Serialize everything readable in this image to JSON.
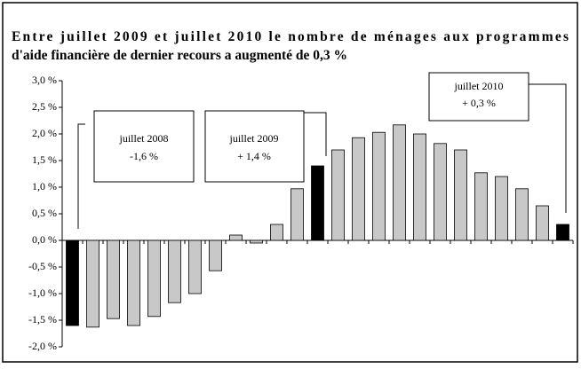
{
  "chart_data": {
    "type": "bar",
    "title": [
      "Entre juillet 2009 et juillet 2010 le nombre de ménages aux programmes",
      "d'aide financière de dernier recours a augmenté de 0,3 %"
    ],
    "categories": [
      null,
      null,
      null,
      null,
      null,
      null,
      null,
      null,
      null,
      null,
      null,
      null,
      null,
      null,
      null,
      null,
      null,
      null,
      null,
      null,
      null,
      null,
      null,
      null,
      null
    ],
    "values": [
      -1.6,
      -1.63,
      -1.47,
      -1.6,
      -1.43,
      -1.17,
      -1.0,
      -0.57,
      0.1,
      -0.05,
      0.3,
      0.97,
      1.4,
      1.7,
      1.93,
      2.03,
      2.17,
      2.0,
      1.82,
      1.7,
      1.27,
      1.2,
      0.97,
      0.65,
      0.3
    ],
    "colors": [
      "#000000",
      "#c8c8c8",
      "#c8c8c8",
      "#c8c8c8",
      "#c8c8c8",
      "#c8c8c8",
      "#c8c8c8",
      "#c8c8c8",
      "#c8c8c8",
      "#c8c8c8",
      "#c8c8c8",
      "#c8c8c8",
      "#000000",
      "#c8c8c8",
      "#c8c8c8",
      "#c8c8c8",
      "#c8c8c8",
      "#c8c8c8",
      "#c8c8c8",
      "#c8c8c8",
      "#c8c8c8",
      "#c8c8c8",
      "#c8c8c8",
      "#c8c8c8",
      "#000000"
    ],
    "ylim": [
      -2.0,
      3.0
    ],
    "yticks": [
      {
        "value": -2.0,
        "label": "-2,0 %"
      },
      {
        "value": -1.5,
        "label": "-1,5 %"
      },
      {
        "value": -1.0,
        "label": "-1,0 %"
      },
      {
        "value": -0.5,
        "label": "-0,5 %"
      },
      {
        "value": 0.0,
        "label": "0,0 %"
      },
      {
        "value": 0.5,
        "label": "0,5 %"
      },
      {
        "value": 1.0,
        "label": "1,0 %"
      },
      {
        "value": 1.5,
        "label": "1,5 %"
      },
      {
        "value": 2.0,
        "label": "2,0 %"
      },
      {
        "value": 2.5,
        "label": "2,5 %"
      },
      {
        "value": 3.0,
        "label": "3,0 %"
      }
    ],
    "annotations": [
      {
        "lines": [
          "juillet 2008",
          "-1,6 %"
        ]
      },
      {
        "lines": [
          "juillet 2009",
          "+ 1,4 %"
        ]
      },
      {
        "lines": [
          "juillet 2010",
          "+ 0,3 %"
        ]
      }
    ]
  }
}
